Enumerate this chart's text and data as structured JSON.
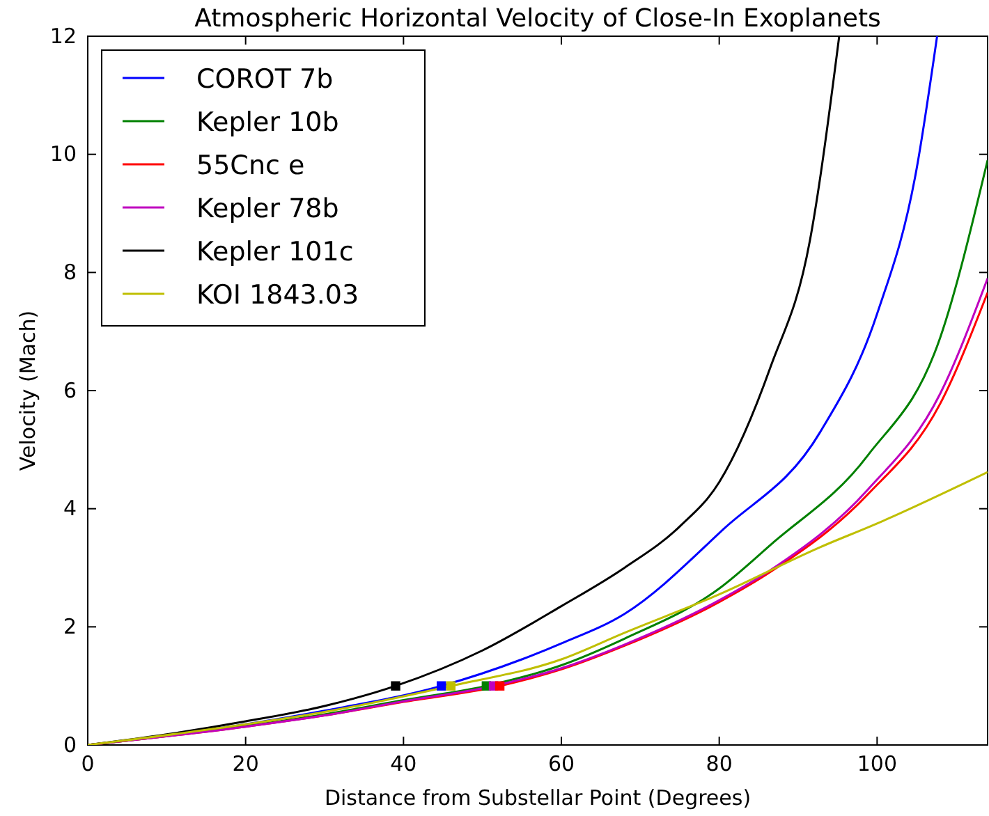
{
  "chart_data": {
    "type": "line",
    "title": "Atmospheric Horizontal Velocity of Close-In Exoplanets",
    "xlabel": "Distance from Substellar Point (Degrees)",
    "ylabel": "Velocity (Mach)",
    "xlim": [
      0,
      114
    ],
    "ylim": [
      0,
      12
    ],
    "xticks": [
      0,
      20,
      40,
      60,
      80,
      100
    ],
    "yticks": [
      0,
      2,
      4,
      6,
      8,
      10,
      12
    ],
    "grid": false,
    "legend": "top left",
    "marker": "none",
    "line_style": "solid",
    "series": [
      {
        "name": "COROT 7b",
        "color": "#0000ff",
        "x": [
          0,
          20,
          30,
          44.8,
          55,
          60,
          68,
          80.5,
          92.8,
          100,
          105,
          107.6
        ],
        "values": [
          0,
          0.35,
          0.58,
          1,
          1.45,
          1.72,
          2.22,
          3.65,
          5.3,
          7.3,
          9.75,
          12
        ]
      },
      {
        "name": "Kepler 10b",
        "color": "#008000",
        "x": [
          0,
          20,
          30,
          40,
          50.5,
          60,
          68,
          80,
          86.6,
          98.8,
          108,
          114
        ],
        "values": [
          0,
          0.32,
          0.52,
          0.76,
          1,
          1.35,
          1.8,
          2.65,
          3.4,
          4.9,
          6.9,
          9.9
        ]
      },
      {
        "name": "55Cnc e",
        "color": "#ff0000",
        "x": [
          0,
          20,
          30,
          40,
          52.2,
          60,
          68,
          80,
          86.6,
          98.8,
          108,
          114
        ],
        "values": [
          0,
          0.31,
          0.5,
          0.73,
          1,
          1.28,
          1.68,
          2.42,
          2.94,
          4.24,
          5.78,
          7.66
        ]
      },
      {
        "name": "Kepler 78b",
        "color": "#bf00bf",
        "x": [
          0,
          20,
          30,
          40,
          51.4,
          60,
          68,
          80,
          86.6,
          98.8,
          108,
          114
        ],
        "values": [
          0,
          0.31,
          0.5,
          0.74,
          1,
          1.3,
          1.7,
          2.45,
          2.97,
          4.32,
          5.95,
          7.9
        ]
      },
      {
        "name": "Kepler 101c",
        "color": "#000000",
        "x": [
          0,
          10,
          20,
          30,
          39,
          50,
          60,
          68,
          75,
          80,
          86.5,
          91.5,
          95.2
        ],
        "values": [
          0,
          0.18,
          0.4,
          0.66,
          1,
          1.6,
          2.35,
          3.0,
          3.7,
          4.45,
          6.4,
          8.55,
          12
        ]
      },
      {
        "name": "KOI 1843.03",
        "color": "#bfbf00",
        "x": [
          0,
          20,
          30,
          46,
          60,
          68,
          80,
          92.8,
          100,
          114
        ],
        "values": [
          0,
          0.35,
          0.56,
          1,
          1.45,
          1.9,
          2.55,
          3.35,
          3.75,
          4.62
        ]
      },
      {
        "type": "scatter",
        "marker": "square",
        "color": "#000000",
        "x": [
          39
        ],
        "values": [
          1
        ]
      },
      {
        "type": "scatter",
        "marker": "square",
        "color": "#0000ff",
        "x": [
          44.8
        ],
        "values": [
          1
        ]
      },
      {
        "type": "scatter",
        "marker": "square",
        "color": "#bfbf00",
        "x": [
          46
        ],
        "values": [
          1
        ]
      },
      {
        "type": "scatter",
        "marker": "square",
        "color": "#008000",
        "x": [
          50.5
        ],
        "values": [
          1
        ]
      },
      {
        "type": "scatter",
        "marker": "square",
        "color": "#bf00bf",
        "x": [
          51.4
        ],
        "values": [
          1
        ]
      },
      {
        "type": "scatter",
        "marker": "square",
        "color": "#ff0000",
        "x": [
          52.2
        ],
        "values": [
          1
        ]
      }
    ]
  }
}
